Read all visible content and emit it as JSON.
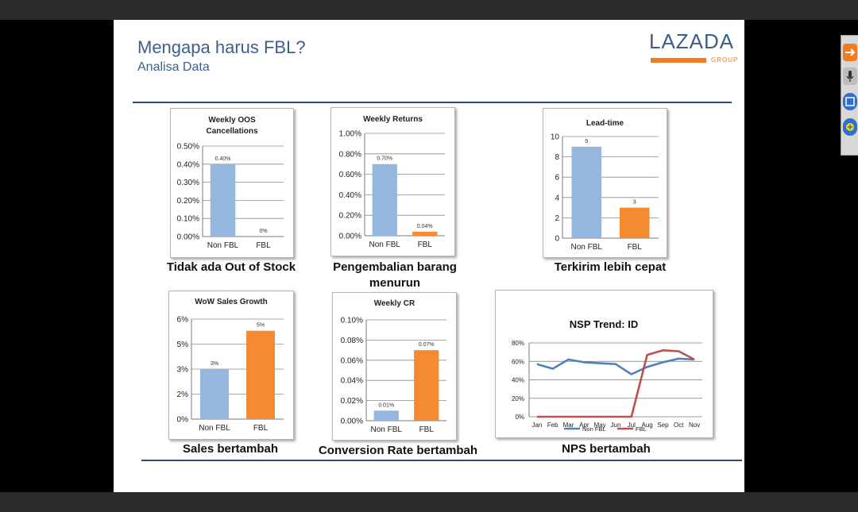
{
  "slide": {
    "title": "Mengapa harus FBL?",
    "subtitle": "Analisa Data",
    "logo": {
      "text": "LAZADA",
      "group": "GROUP"
    }
  },
  "colors": {
    "non_fbl": "#94b7e0",
    "fbl": "#f58a33",
    "npc_blue": "#4f81bd",
    "npc_red": "#c0504d"
  },
  "sidebar": {
    "icons": [
      "arrow-icon",
      "microphone-icon",
      "window-icon",
      "hand-icon"
    ]
  },
  "captions": {
    "oos": "Tidak ada Out of Stock",
    "returns": "Pengembalian barang menurun",
    "leadtime": "Terkirim lebih cepat",
    "sales": "Sales bertambah",
    "cr": "Conversion Rate bertambah",
    "nps": "NPS bertambah"
  },
  "chart_data": [
    {
      "id": "oos",
      "type": "bar",
      "title": "Weekly OOS Cancellations",
      "categories": [
        "Non FBL",
        "FBL"
      ],
      "values": [
        0.4,
        0
      ],
      "data_labels": [
        "0.40%",
        "0%"
      ],
      "ylim": [
        0,
        0.5
      ],
      "yticks": [
        "0.00%",
        "0.10%",
        "0.20%",
        "0.30%",
        "0.40%",
        "0.50%"
      ],
      "grid": true
    },
    {
      "id": "returns",
      "type": "bar",
      "title": "Weekly Returns",
      "categories": [
        "Non FBL",
        "FBL"
      ],
      "values": [
        0.7,
        0.04
      ],
      "data_labels": [
        "0.70%",
        "0.04%"
      ],
      "ylim": [
        0,
        1.0
      ],
      "yticks": [
        "0.00%",
        "0.20%",
        "0.40%",
        "0.60%",
        "0.80%",
        "1.00%"
      ],
      "grid": true
    },
    {
      "id": "leadtime",
      "type": "bar",
      "title": "Lead-time",
      "categories": [
        "Non FBL",
        "FBL"
      ],
      "values": [
        9,
        3
      ],
      "data_labels": [
        "9",
        "3"
      ],
      "ylim": [
        0,
        10
      ],
      "yticks": [
        "0",
        "2",
        "4",
        "6",
        "8",
        "10"
      ],
      "grid": true
    },
    {
      "id": "sales",
      "type": "bar",
      "title": "WoW Sales Growth",
      "categories": [
        "Non FBL",
        "FBL"
      ],
      "values": [
        3,
        5.3
      ],
      "data_labels": [
        "3%",
        "5%"
      ],
      "ylim": [
        0,
        6
      ],
      "yticks": [
        "0%",
        "2%",
        "3%",
        "5%",
        "6%"
      ],
      "ytick_values": [
        0,
        1.5,
        3,
        4.5,
        6
      ],
      "grid": true
    },
    {
      "id": "cr",
      "type": "bar",
      "title": "Weekly CR",
      "categories": [
        "Non FBL",
        "FBL"
      ],
      "values": [
        0.01,
        0.07
      ],
      "data_labels": [
        "0.01%",
        "0.07%"
      ],
      "ylim": [
        0,
        0.1
      ],
      "yticks": [
        "0.00%",
        "0.02%",
        "0.04%",
        "0.06%",
        "0.08%",
        "0.10%"
      ],
      "grid": true
    },
    {
      "id": "nps",
      "type": "line",
      "title": "NSP Trend: ID",
      "x": [
        "Jan",
        "Feb",
        "Mar",
        "Apr",
        "May",
        "Jun",
        "Jul",
        "Aug",
        "Sep",
        "Oct",
        "Nov"
      ],
      "series": [
        {
          "name": "Non FBL",
          "values": [
            57,
            52,
            62,
            59,
            58,
            57,
            46,
            54,
            59,
            63,
            62
          ]
        },
        {
          "name": "FBL",
          "values": [
            0,
            0,
            0,
            0,
            0,
            0,
            0,
            67,
            72,
            71,
            62
          ]
        }
      ],
      "ylim": [
        0,
        80
      ],
      "yticks": [
        "0%",
        "20%",
        "40%",
        "60%",
        "80%"
      ],
      "legend": "bottom",
      "grid": true
    }
  ]
}
